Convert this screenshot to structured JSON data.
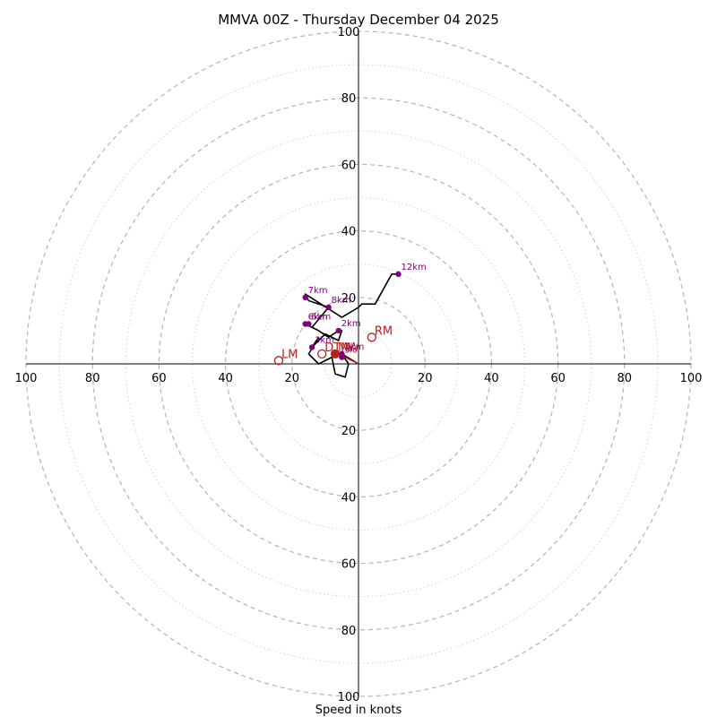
{
  "chart_data": {
    "type": "hodograph",
    "title": "MMVA 00Z - Thursday December 04 2025",
    "xlabel": "Speed in knots",
    "rmax": 100,
    "ring_step_major": 20,
    "ring_step_minor": 10,
    "tick_labels": [
      "20",
      "40",
      "60",
      "80",
      "100"
    ],
    "colors": {
      "profile": "#000000",
      "heights": "#800080",
      "motion": "#b22222",
      "major_ring": "#b4b4b4",
      "minor_ring": "#d2d2d2"
    },
    "profile": [
      {
        "u": 0,
        "v": 0
      },
      {
        "u": -5,
        "v": 3
      },
      {
        "u": -3,
        "v": 0
      },
      {
        "u": -4,
        "v": -4
      },
      {
        "u": -7,
        "v": -3
      },
      {
        "u": -8,
        "v": 2
      },
      {
        "u": -12,
        "v": 0
      },
      {
        "u": -15,
        "v": 3
      },
      {
        "u": -12,
        "v": 8
      },
      {
        "u": -14,
        "v": 5
      },
      {
        "u": -10,
        "v": 9
      },
      {
        "u": -6,
        "v": 7
      },
      {
        "u": -5,
        "v": 10
      },
      {
        "u": -6,
        "v": 10
      },
      {
        "u": -9,
        "v": 8
      },
      {
        "u": -12,
        "v": 10
      },
      {
        "u": -16,
        "v": 12
      },
      {
        "u": -14,
        "v": 11
      },
      {
        "u": -9,
        "v": 17
      },
      {
        "u": -15,
        "v": 19
      },
      {
        "u": -16,
        "v": 21
      },
      {
        "u": -5,
        "v": 14
      },
      {
        "u": 0,
        "v": 17
      },
      {
        "u": 1,
        "v": 18
      },
      {
        "u": 5,
        "v": 18
      },
      {
        "u": 10,
        "v": 27
      },
      {
        "u": 12,
        "v": 27
      }
    ],
    "height_markers": [
      {
        "label": "sfc",
        "u": -5,
        "v": 2
      },
      {
        "label": "1km",
        "u": -5,
        "v": 3
      },
      {
        "label": "2km",
        "u": -6,
        "v": 10
      },
      {
        "label": "3km",
        "u": -14,
        "v": 5
      },
      {
        "label": "5km",
        "u": -15,
        "v": 12
      },
      {
        "label": "6km",
        "u": -16,
        "v": 12
      },
      {
        "label": "7km",
        "u": -16,
        "v": 20
      },
      {
        "label": "8km",
        "u": -9,
        "v": 17
      },
      {
        "label": "12km",
        "u": 12,
        "v": 27
      }
    ],
    "storm_motion": [
      {
        "label": "RM",
        "u": 4,
        "v": 8,
        "filled": false
      },
      {
        "label": "LM",
        "u": -24,
        "v": 1,
        "filled": false
      },
      {
        "label": "MW",
        "u": -7,
        "v": 3,
        "filled": true
      },
      {
        "label": "DTM",
        "u": -11,
        "v": 3,
        "filled": false
      }
    ],
    "shear_vector": [
      {
        "u": 0,
        "v": 0
      },
      {
        "u": -8,
        "v": 4
      }
    ],
    "grid": true
  }
}
